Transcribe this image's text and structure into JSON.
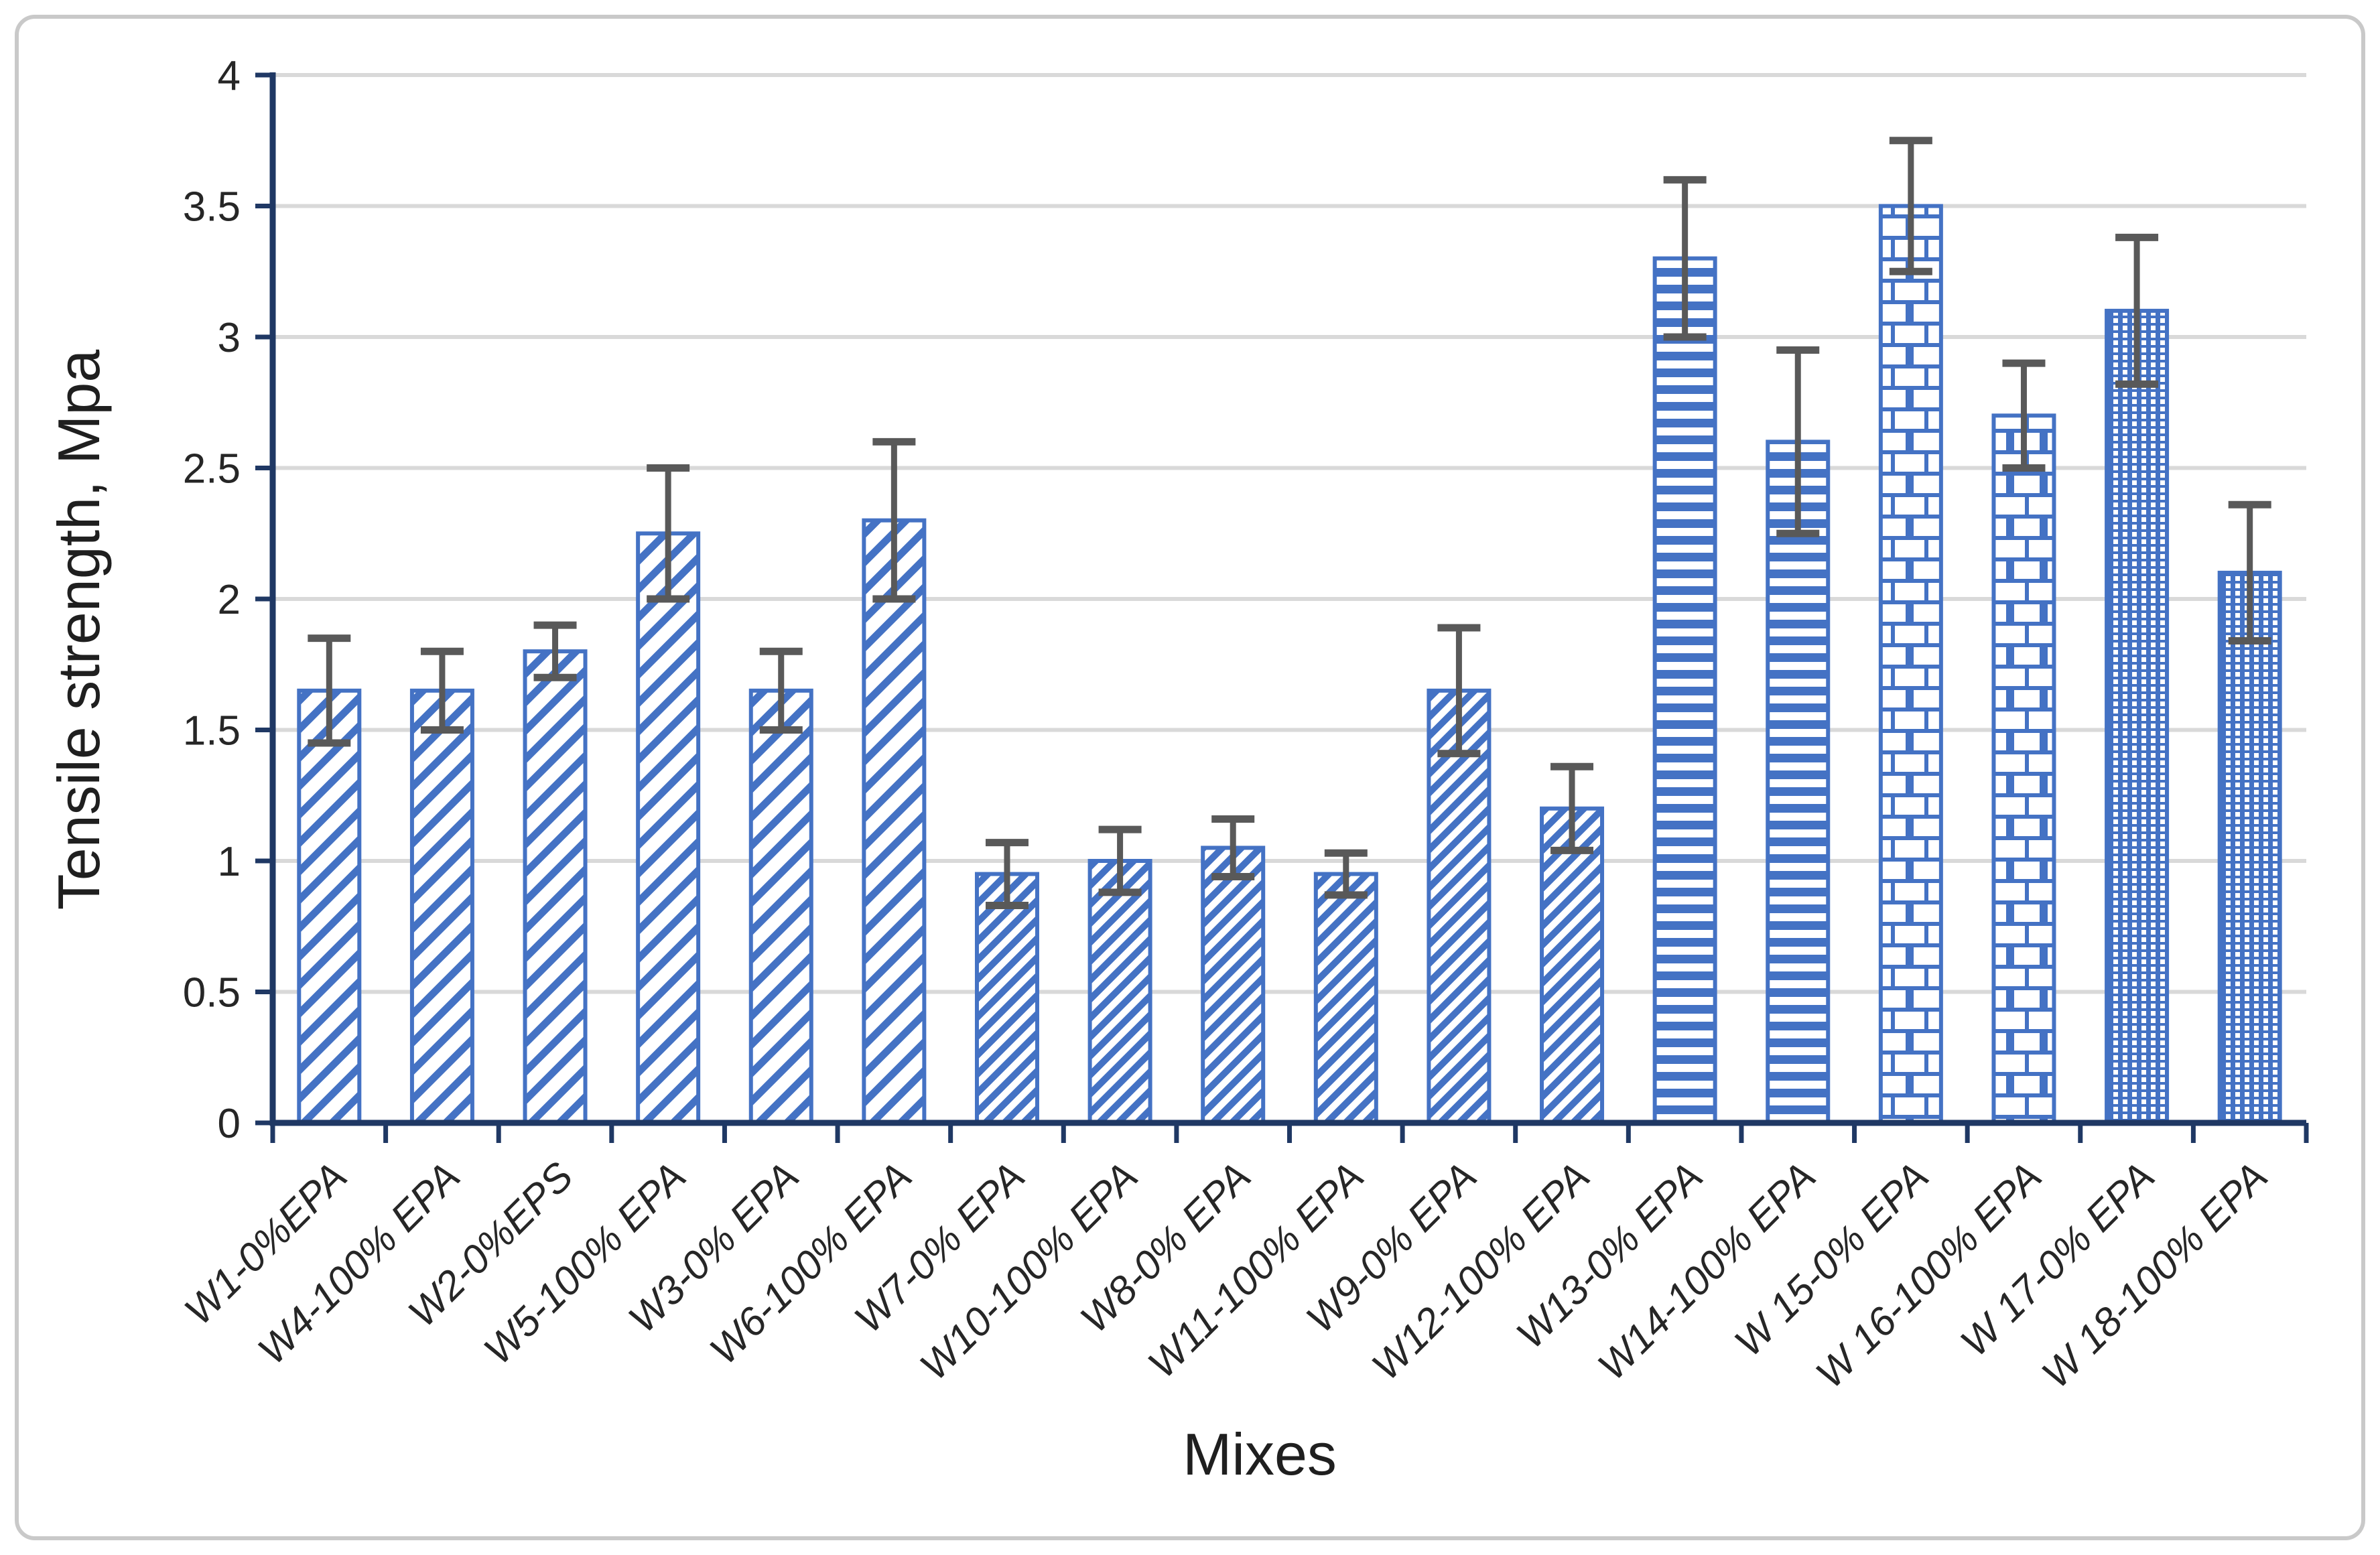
{
  "figure": {
    "background": "#FFFFFF",
    "border_color": "#C9C9C9"
  },
  "colors": {
    "bar_blue": "#4472C4",
    "axis_navy": "#1F3864",
    "gridline_gray": "#D9D9D9",
    "error_bar_gray": "#595959",
    "text_dark": "#262626"
  },
  "chart_data": {
    "type": "bar",
    "title": "",
    "xlabel": "Mixes",
    "ylabel": "Tensile strength, Mpa",
    "ylim": [
      0,
      4
    ],
    "ytick_step": 0.5,
    "grid": true,
    "legend": "none",
    "ytick_labels": [
      "0",
      "0.5",
      "1",
      "1.5",
      "2",
      "2.5",
      "3",
      "3.5",
      "4"
    ],
    "ytick_values": [
      0,
      0.5,
      1,
      1.5,
      2,
      2.5,
      3,
      3.5,
      4
    ],
    "categories": [
      "W1-0%EPA",
      "W4-100% EPA",
      "W2-0%EPS",
      "W5-100% EPA",
      "W3-0% EPA",
      "W6-100% EPA",
      "W7-0% EPA",
      "W10-100% EPA",
      "W8-0% EPA",
      "W11-100% EPA",
      "W9-0% EPA",
      "W12-100% EPA",
      "W13-0% EPA",
      "W14-100% EPA",
      "W 15-0% EPA",
      "W 16-100% EPA",
      "W 17-0% EPA",
      "W 18-100% EPA"
    ],
    "values": [
      1.65,
      1.65,
      1.8,
      2.25,
      1.65,
      2.3,
      0.95,
      1.0,
      1.05,
      0.95,
      1.65,
      1.2,
      3.3,
      2.6,
      3.5,
      2.7,
      3.1,
      2.1
    ],
    "error_bars": [
      0.2,
      0.15,
      0.1,
      0.25,
      0.15,
      0.3,
      0.12,
      0.12,
      0.11,
      0.08,
      0.24,
      0.16,
      0.3,
      0.35,
      0.25,
      0.2,
      0.28,
      0.26
    ],
    "bar_patterns": [
      "diagonal-wide",
      "diagonal-wide",
      "diagonal-wide",
      "diagonal-wide",
      "diagonal-wide",
      "diagonal-wide",
      "diagonal-fine",
      "diagonal-fine",
      "diagonal-fine",
      "diagonal-fine",
      "diagonal-fine",
      "diagonal-fine",
      "horizontal-stripes",
      "horizontal-stripes",
      "brick",
      "brick",
      "dotted-grid",
      "dotted-grid"
    ]
  }
}
